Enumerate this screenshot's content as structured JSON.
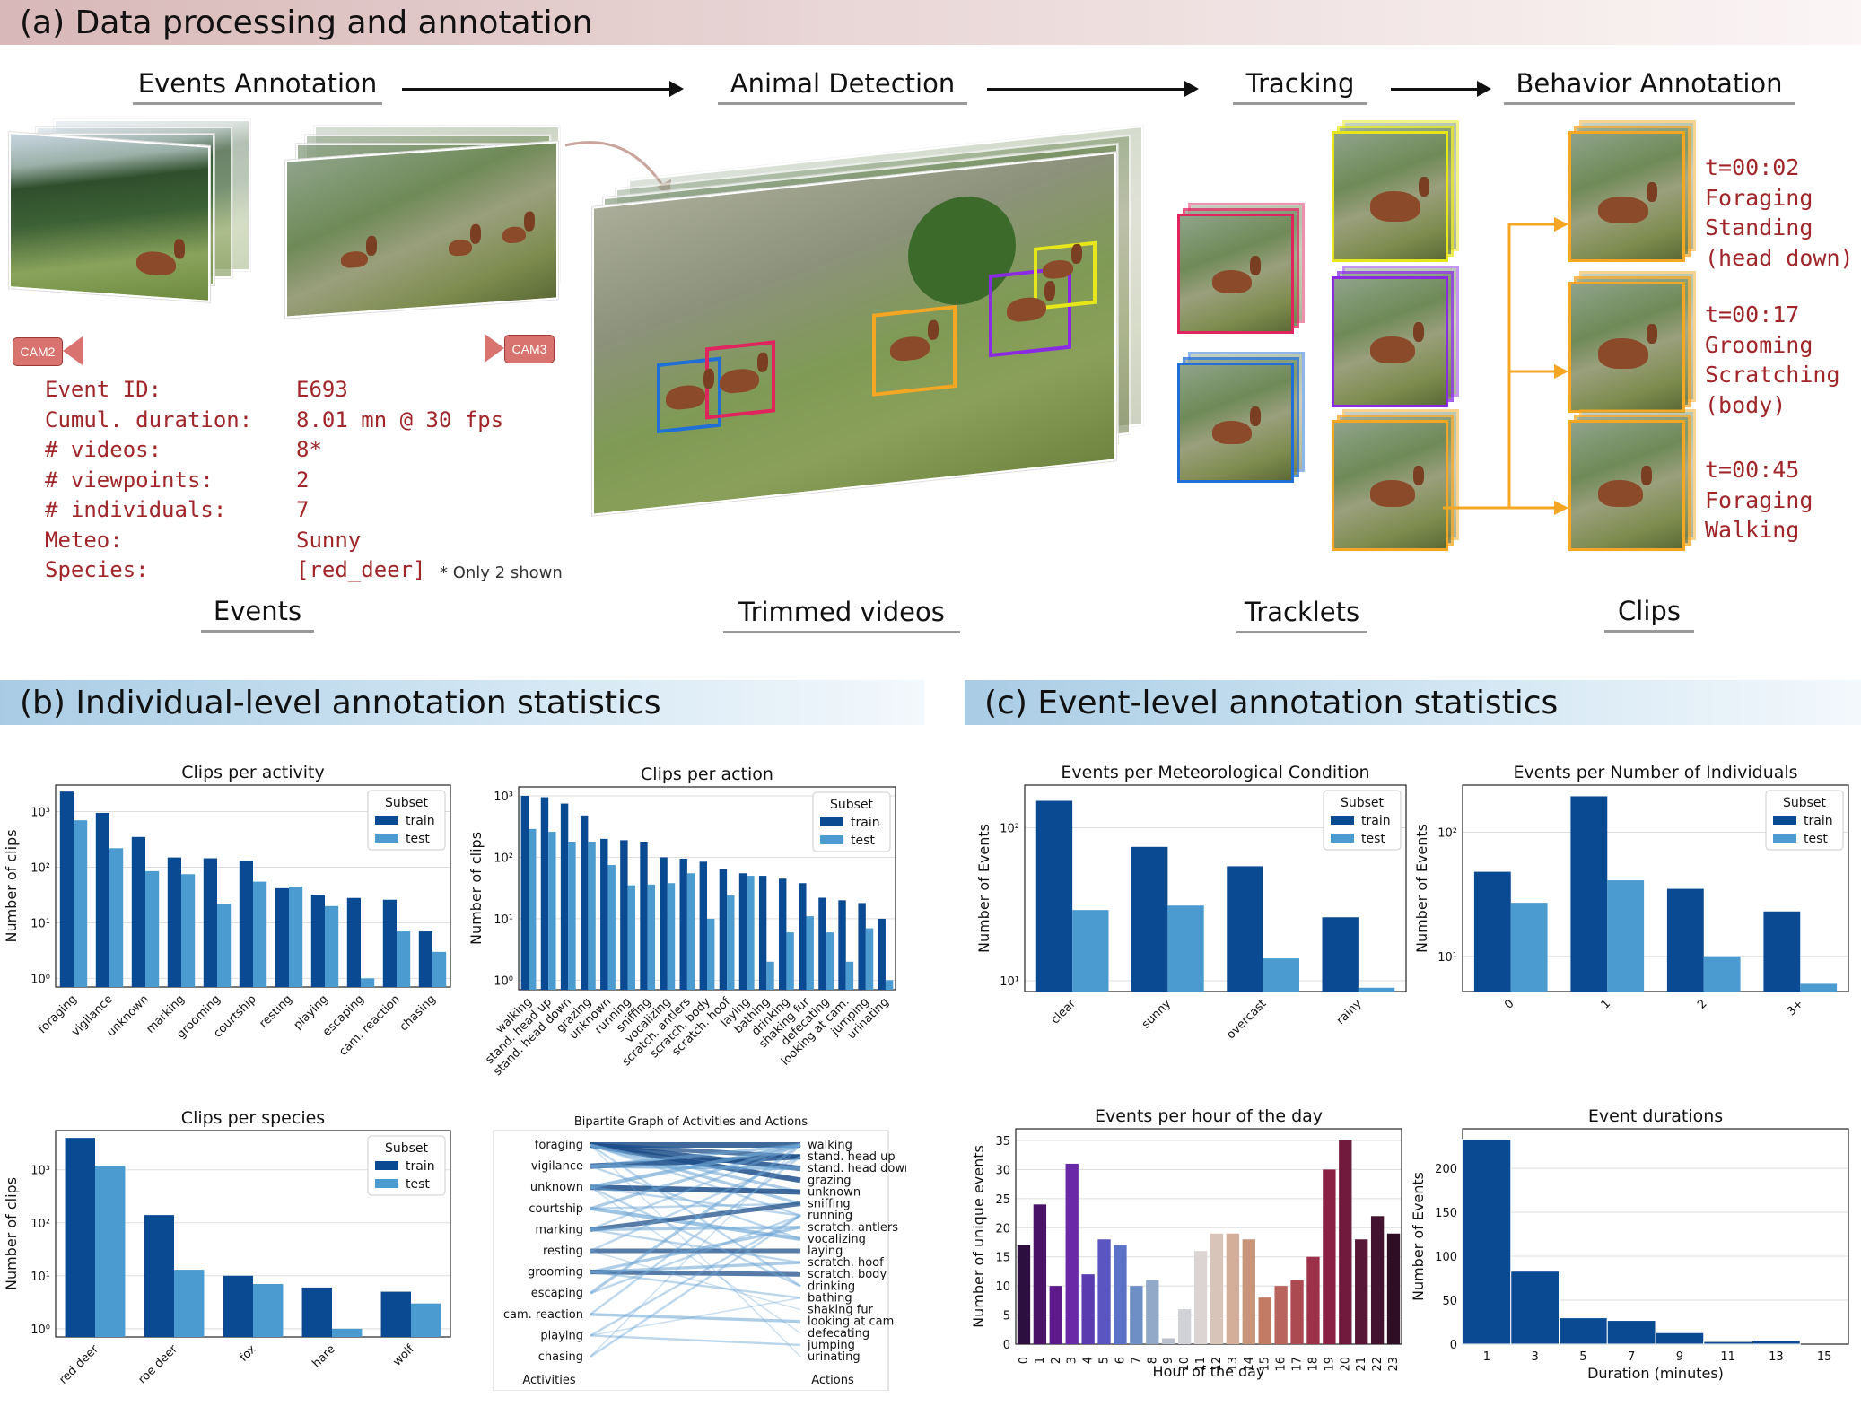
{
  "sections": {
    "a": "(a) Data processing and annotation",
    "b": "(b) Individual-level annotation statistics",
    "c": "(c) Event-level annotation statistics"
  },
  "stages": {
    "events_annotation": "Events Annotation",
    "animal_detection": "Animal Detection",
    "tracking": "Tracking",
    "behavior_annotation": "Behavior Annotation",
    "events": "Events",
    "trimmed_videos": "Trimmed videos",
    "tracklets": "Tracklets",
    "clips": "Clips"
  },
  "cameras": {
    "left": "CAM2",
    "right": "CAM3"
  },
  "event_info": [
    {
      "k": "Event ID:",
      "v": "E693"
    },
    {
      "k": "Cumul. duration:",
      "v": "8.01 mn @ 30 fps"
    },
    {
      "k": "# videos:",
      "v": "8*"
    },
    {
      "k": "# viewpoints:",
      "v": "2"
    },
    {
      "k": "# individuals:",
      "v": "7"
    },
    {
      "k": "Meteo:",
      "v": "Sunny"
    },
    {
      "k": "Species:",
      "v": "[red_deer]"
    }
  ],
  "only_shown_note": "* Only 2 shown",
  "clip_labels": [
    [
      "t=00:02",
      "Foraging",
      "Standing",
      "(head down)"
    ],
    [
      "t=00:17",
      "Grooming",
      "Scratching",
      "(body)"
    ],
    [
      "t=00:45",
      "Foraging",
      "Walking"
    ]
  ],
  "colors": {
    "train": "#0a4a93",
    "test": "#4c9bd0",
    "orange": "#f5a623",
    "blue": "#1f6fd6",
    "red": "#e0245e",
    "purple": "#8a2be2",
    "yellow": "#e6e61a"
  },
  "legend": {
    "title": "Subset",
    "train": "train",
    "test": "test"
  },
  "chart_data": [
    {
      "id": "activity",
      "type": "bar",
      "scale": "log",
      "title": "Clips per activity",
      "ylabel": "Number of clips",
      "categories": [
        "foraging",
        "vigilance",
        "unknown",
        "marking",
        "grooming",
        "courtship",
        "resting",
        "playing",
        "escaping",
        "cam. reaction",
        "chasing"
      ],
      "series": [
        {
          "name": "train",
          "values": [
            2300,
            950,
            350,
            150,
            145,
            130,
            42,
            32,
            28,
            26,
            7
          ]
        },
        {
          "name": "test",
          "values": [
            700,
            220,
            85,
            75,
            22,
            55,
            45,
            20,
            1,
            7,
            3
          ]
        }
      ],
      "yticks": [
        "10⁰",
        "10¹",
        "10²",
        "10³"
      ],
      "ylim": [
        0.7,
        3000
      ]
    },
    {
      "id": "action",
      "type": "bar",
      "scale": "log",
      "title": "Clips per action",
      "ylabel": "Number of clips",
      "categories": [
        "walking",
        "stand. head up",
        "stand. head down",
        "grazing",
        "unknown",
        "running",
        "sniffing",
        "vocalizing",
        "scratch. antlers",
        "scratch. body",
        "scratch. hoof",
        "laying",
        "bathing",
        "drinking",
        "shaking fur",
        "defecating",
        "looking at cam.",
        "jumping",
        "urinating"
      ],
      "series": [
        {
          "name": "train",
          "values": [
            1000,
            950,
            750,
            480,
            200,
            190,
            180,
            100,
            95,
            85,
            65,
            55,
            50,
            45,
            38,
            22,
            20,
            18,
            10
          ]
        },
        {
          "name": "test",
          "values": [
            290,
            260,
            180,
            180,
            75,
            35,
            36,
            38,
            55,
            10,
            24,
            50,
            2,
            6,
            11,
            6,
            2,
            7,
            1
          ]
        }
      ],
      "yticks": [
        "10⁰",
        "10¹",
        "10²",
        "10³"
      ],
      "ylim": [
        0.7,
        1400
      ]
    },
    {
      "id": "species",
      "type": "bar",
      "scale": "log",
      "title": "Clips per species",
      "ylabel": "Number of clips",
      "categories": [
        "red deer",
        "roe deer",
        "fox",
        "hare",
        "wolf"
      ],
      "series": [
        {
          "name": "train",
          "values": [
            4000,
            140,
            10,
            6,
            5
          ]
        },
        {
          "name": "test",
          "values": [
            1200,
            13,
            7,
            1,
            3
          ]
        }
      ],
      "yticks": [
        "10⁰",
        "10¹",
        "10²",
        "10³"
      ],
      "ylim": [
        0.7,
        5500
      ]
    },
    {
      "id": "bipartite",
      "type": "bipartite",
      "title": "Bipartite Graph of Activities and Actions",
      "left": [
        "foraging",
        "vigilance",
        "unknown",
        "courtship",
        "marking",
        "resting",
        "grooming",
        "escaping",
        "cam. reaction",
        "playing",
        "chasing"
      ],
      "right": [
        "walking",
        "stand. head up",
        "stand. head down",
        "grazing",
        "unknown",
        "sniffing",
        "running",
        "scratch. antlers",
        "vocalizing",
        "laying",
        "scratch. hoof",
        "scratch. body",
        "drinking",
        "bathing",
        "shaking fur",
        "looking at cam.",
        "defecating",
        "jumping",
        "urinating"
      ],
      "xlabel_left": "Activities",
      "xlabel_right": "Actions"
    },
    {
      "id": "meteo",
      "type": "bar",
      "scale": "log",
      "title": "Events per Meteorological Condition",
      "ylabel": "Number of Events",
      "categories": [
        "clear",
        "sunny",
        "overcast",
        "rainy"
      ],
      "series": [
        {
          "name": "train",
          "values": [
            150,
            75,
            56,
            26
          ]
        },
        {
          "name": "test",
          "values": [
            29,
            31,
            14,
            9
          ]
        }
      ],
      "yticks": [
        "10¹",
        "10²"
      ],
      "ylim": [
        8.5,
        190
      ]
    },
    {
      "id": "individuals",
      "type": "bar",
      "scale": "log",
      "title": "Events per Number of Individuals",
      "ylabel": "Number of Events",
      "categories": [
        "0",
        "1",
        "2",
        "3+"
      ],
      "series": [
        {
          "name": "train",
          "values": [
            48,
            195,
            35,
            23
          ]
        },
        {
          "name": "test",
          "values": [
            27,
            41,
            10,
            6
          ]
        }
      ],
      "yticks": [
        "10¹",
        "10²"
      ],
      "ylim": [
        5.2,
        240
      ]
    },
    {
      "id": "hour",
      "type": "bar",
      "title": "Events per hour of the day",
      "ylabel": "Number of unique events",
      "xlabel": "Hour of the day",
      "categories": [
        "0",
        "1",
        "2",
        "3",
        "4",
        "5",
        "6",
        "7",
        "8",
        "9",
        "10",
        "11",
        "12",
        "13",
        "14",
        "15",
        "16",
        "17",
        "18",
        "19",
        "20",
        "21",
        "22",
        "23"
      ],
      "values": [
        17,
        24,
        10,
        31,
        12,
        18,
        17,
        10,
        11,
        1,
        6,
        16,
        19,
        19,
        18,
        8,
        10,
        11,
        15,
        30,
        35,
        18,
        22,
        19
      ],
      "yticks": [
        0,
        5,
        10,
        15,
        20,
        25,
        30,
        35
      ],
      "ylim": [
        0,
        37
      ]
    },
    {
      "id": "duration",
      "type": "bar",
      "title": "Event durations",
      "ylabel": "Number of Events",
      "xlabel": "Duration (minutes)",
      "categories": [
        "1",
        "3",
        "5",
        "7",
        "9",
        "11",
        "13",
        "15"
      ],
      "values": [
        233,
        83,
        30,
        27,
        13,
        3,
        4,
        0
      ],
      "yticks": [
        0,
        50,
        100,
        150,
        200
      ],
      "ylim": [
        0,
        245
      ]
    }
  ]
}
